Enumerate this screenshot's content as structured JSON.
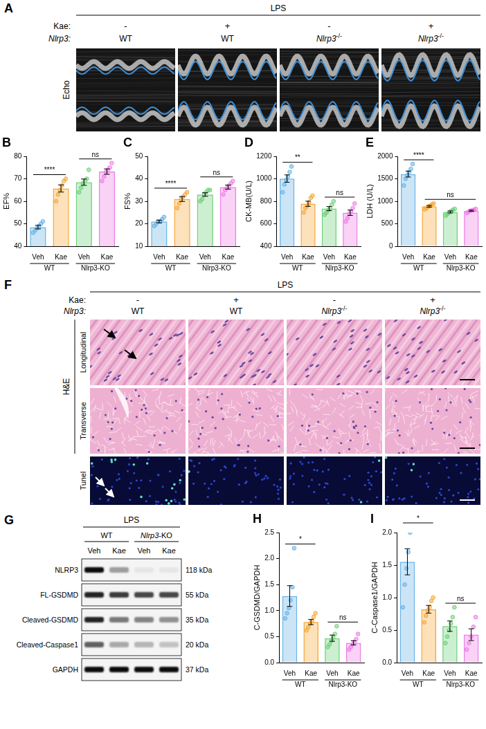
{
  "chart_data": [
    {
      "type": "bar",
      "panel": "B",
      "ylabel": "EF%",
      "categories": [
        "Veh",
        "Kae",
        "Veh",
        "Kae"
      ],
      "group_labels": [
        "WT",
        "Nlrp3-KO"
      ],
      "colors": [
        "#6ab4e8",
        "#f5a93b",
        "#6fd17a",
        "#ee7fe6"
      ],
      "values": [
        48.5,
        65.7,
        68.5,
        73.2
      ],
      "errors": [
        0.8,
        1.6,
        1.4,
        1.2
      ],
      "points": [
        [
          46,
          47,
          48,
          49,
          50,
          51
        ],
        [
          60,
          63,
          65,
          67,
          69,
          70
        ],
        [
          64,
          66,
          68,
          69,
          70,
          74
        ],
        [
          69,
          71,
          73,
          74,
          75,
          77
        ]
      ],
      "comparisons": [
        {
          "pair": [
            0,
            1
          ],
          "label": "****"
        },
        {
          "pair": [
            2,
            3
          ],
          "label": "ns"
        }
      ],
      "ylim": [
        40,
        80
      ],
      "yticks": [
        40,
        50,
        60,
        70,
        80
      ],
      "grid": false
    },
    {
      "type": "bar",
      "panel": "C",
      "ylabel": "FS%",
      "categories": [
        "Veh",
        "Kae",
        "Veh",
        "Kae"
      ],
      "group_labels": [
        "WT",
        "Nlrp3-KO"
      ],
      "colors": [
        "#6ab4e8",
        "#f5a93b",
        "#6fd17a",
        "#ee7fe6"
      ],
      "values": [
        21,
        31,
        33,
        36.3
      ],
      "errors": [
        0.6,
        1.1,
        0.8,
        0.9
      ],
      "points": [
        [
          19,
          20,
          21,
          21,
          22,
          23
        ],
        [
          27,
          29,
          31,
          32,
          33,
          34
        ],
        [
          30,
          31,
          33,
          34,
          35,
          35
        ],
        [
          33,
          35,
          36,
          37,
          38,
          39
        ]
      ],
      "comparisons": [
        {
          "pair": [
            0,
            1
          ],
          "label": "****"
        },
        {
          "pair": [
            2,
            3
          ],
          "label": "ns"
        }
      ],
      "ylim": [
        10,
        50
      ],
      "yticks": [
        10,
        20,
        30,
        40,
        50
      ],
      "grid": false
    },
    {
      "type": "bar",
      "panel": "D",
      "ylabel": "CK-MB(U/L)",
      "categories": [
        "Veh",
        "Kae",
        "Veh",
        "Kae"
      ],
      "group_labels": [
        "WT",
        "Nlrp3-KO"
      ],
      "colors": [
        "#6ab4e8",
        "#f5a93b",
        "#6fd17a",
        "#ee7fe6"
      ],
      "values": [
        1002,
        778,
        735,
        698
      ],
      "errors": [
        33,
        23,
        18,
        24
      ],
      "points": [
        [
          880,
          950,
          990,
          1020,
          1060,
          1110
        ],
        [
          700,
          740,
          760,
          790,
          830,
          850
        ],
        [
          680,
          700,
          720,
          740,
          770,
          800
        ],
        [
          620,
          650,
          690,
          710,
          740,
          780
        ]
      ],
      "comparisons": [
        {
          "pair": [
            0,
            1
          ],
          "label": "**"
        },
        {
          "pair": [
            2,
            3
          ],
          "label": "ns"
        }
      ],
      "ylim": [
        400,
        1200
      ],
      "yticks": [
        400,
        600,
        800,
        1000,
        1200
      ],
      "grid": false
    },
    {
      "type": "bar",
      "panel": "E",
      "ylabel": "LDH (U/L)",
      "categories": [
        "Veh",
        "Kae",
        "Veh",
        "Kae"
      ],
      "group_labels": [
        "WT",
        "Nlrp3-KO"
      ],
      "colors": [
        "#6ab4e8",
        "#f5a93b",
        "#6fd17a",
        "#ee7fe6"
      ],
      "values": [
        1605,
        888,
        762,
        790
      ],
      "errors": [
        66,
        19,
        23,
        13
      ],
      "points": [
        [
          1350,
          1500,
          1580,
          1650,
          1720,
          1830
        ],
        [
          820,
          850,
          880,
          900,
          930,
          950
        ],
        [
          680,
          720,
          750,
          780,
          810,
          830
        ],
        [
          740,
          770,
          790,
          800,
          810,
          830
        ]
      ],
      "comparisons": [
        {
          "pair": [
            0,
            1
          ],
          "label": "****"
        },
        {
          "pair": [
            1,
            3
          ],
          "label": "ns"
        }
      ],
      "ylim": [
        0,
        2000
      ],
      "yticks": [
        0,
        500,
        1000,
        1500,
        2000
      ],
      "grid": false
    },
    {
      "type": "bar",
      "panel": "H",
      "ylabel": "C-GSDMD/GAPDH",
      "categories": [
        "Veh",
        "Kae",
        "Veh",
        "Kae"
      ],
      "group_labels": [
        "WT",
        "Nlrp3-KO"
      ],
      "colors": [
        "#6ab4e8",
        "#f5a93b",
        "#6fd17a",
        "#ee7fe6"
      ],
      "values": [
        1.28,
        0.78,
        0.47,
        0.38
      ],
      "errors": [
        0.2,
        0.05,
        0.06,
        0.04
      ],
      "points": [
        [
          0.85,
          0.95,
          1.05,
          1.2,
          1.45,
          2.2
        ],
        [
          0.62,
          0.68,
          0.75,
          0.8,
          0.88,
          0.95
        ],
        [
          0.3,
          0.35,
          0.42,
          0.48,
          0.55,
          0.7
        ],
        [
          0.25,
          0.3,
          0.35,
          0.4,
          0.45,
          0.55
        ]
      ],
      "comparisons": [
        {
          "pair": [
            0,
            1
          ],
          "label": "*"
        },
        {
          "pair": [
            2,
            3
          ],
          "label": "ns"
        }
      ],
      "ylim": [
        0,
        2.5
      ],
      "yticks": [
        {
          "value": 0,
          "label": "0.0"
        },
        0.5,
        {
          "value": 1,
          "label": "1.0"
        },
        1.5,
        {
          "value": 2,
          "label": "2.0"
        },
        2.5
      ],
      "grid": false
    },
    {
      "type": "bar",
      "panel": "I",
      "ylabel": "C-Caspase1/GAPDH",
      "categories": [
        "Veh",
        "Kae",
        "Veh",
        "Kae"
      ],
      "group_labels": [
        "WT",
        "Nlrp3-KO"
      ],
      "colors": [
        "#6ab4e8",
        "#f5a93b",
        "#6fd17a",
        "#ee7fe6"
      ],
      "values": [
        1.55,
        0.82,
        0.56,
        0.43
      ],
      "errors": [
        0.2,
        0.06,
        0.08,
        0.09
      ],
      "points": [
        [
          0.85,
          1.2,
          1.45,
          1.7,
          2.0,
          2.1
        ],
        [
          0.62,
          0.72,
          0.8,
          0.85,
          0.95,
          1.0
        ],
        [
          0.3,
          0.4,
          0.5,
          0.6,
          0.7,
          0.85
        ],
        [
          0.2,
          0.3,
          0.4,
          0.55,
          0.7
        ]
      ],
      "comparisons": [
        {
          "pair": [
            0,
            1
          ],
          "label": "*"
        },
        {
          "pair": [
            2,
            3
          ],
          "label": "ns"
        }
      ],
      "ylim": [
        0,
        2.0
      ],
      "yticks": [
        {
          "value": 0,
          "label": "0.0"
        },
        0.5,
        {
          "value": 1,
          "label": "1.0"
        },
        1.5,
        {
          "value": 2,
          "label": "2.0"
        }
      ],
      "grid": false
    }
  ],
  "echo": {
    "panel": "A",
    "treatment": "LPS",
    "kae_label": "Kae:",
    "genotype_label": "Nlrp3:",
    "kae": [
      "-",
      "+",
      "-",
      "+"
    ],
    "genotype": [
      "WT",
      "WT",
      "Nlrp3-/-",
      "Nlrp3-/-"
    ],
    "image_label": "Echo"
  },
  "histology": {
    "panel": "F",
    "treatment": "LPS",
    "kae_label": "Kae:",
    "genotype_label": "Nlrp3:",
    "kae": [
      "-",
      "+",
      "-",
      "+"
    ],
    "genotype": [
      "WT",
      "WT",
      "Nlrp3-/-",
      "Nlrp3-/-"
    ],
    "stain": "H&E",
    "rows": [
      "Longitudinal",
      "Transverse",
      "Tunel"
    ]
  },
  "blot": {
    "panel": "G",
    "treatment": "LPS",
    "groups": [
      "WT",
      "Nlrp3-KO"
    ],
    "lanes": [
      "Veh",
      "Kae",
      "Veh",
      "Kae"
    ],
    "rows": [
      {
        "label": "NLRP3",
        "size": "118 kDa",
        "band_intensity": [
          0.95,
          0.35,
          0.05,
          0.05
        ]
      },
      {
        "label": "FL-GSDMD",
        "size": "55 kDa",
        "band_intensity": [
          0.85,
          0.75,
          0.7,
          0.7
        ]
      },
      {
        "label": "Cleaved-GSDMD",
        "size": "35 kDa",
        "band_intensity": [
          0.85,
          0.5,
          0.45,
          0.4
        ]
      },
      {
        "label": "Cleaved-Caspase1",
        "size": "20 kDa",
        "band_intensity": [
          0.6,
          0.3,
          0.25,
          0.2
        ]
      },
      {
        "label": "GAPDH",
        "size": "37 kDa",
        "band_intensity": [
          0.95,
          0.95,
          0.95,
          0.95
        ]
      }
    ]
  }
}
